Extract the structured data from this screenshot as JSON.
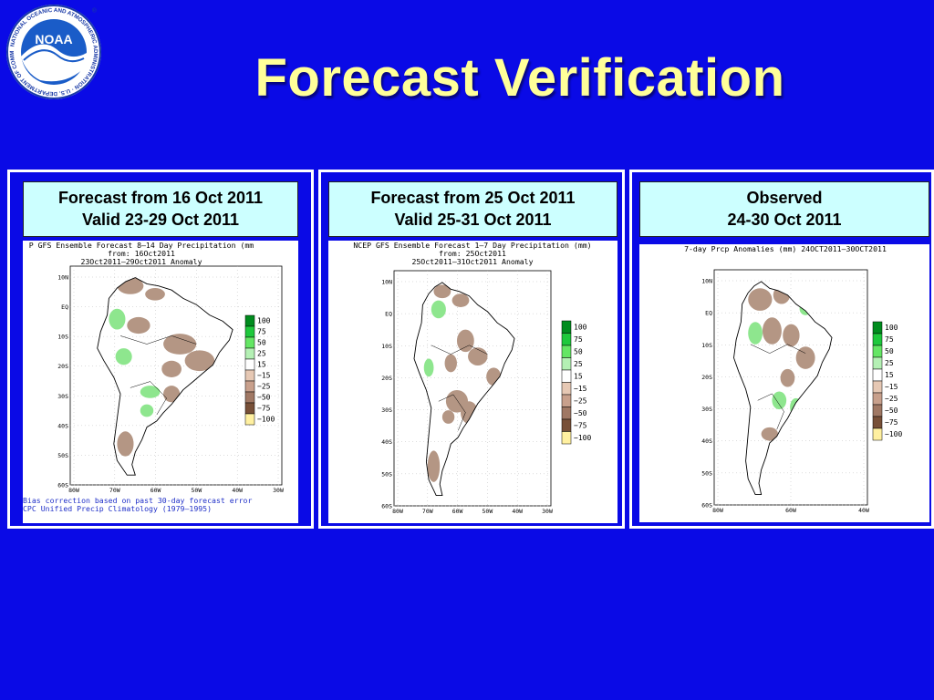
{
  "slide": {
    "title": "Forecast Verification",
    "background_color": "#0a0ae6",
    "title_color": "#ffff99",
    "logo_icon": "noaa-logo",
    "logo_text": "NOAA",
    "logo_ring_text": "NATIONAL OCEANIC AND ATMOSPHERIC ADMINISTRATION · U.S. DEPARTMENT OF COMMERCE"
  },
  "panels": [
    {
      "caption_line1": "Forecast from 16 Oct 2011",
      "caption_line2": "Valid 23-29 Oct 2011",
      "map_header1": "P GFS Ensemble Forecast 8—14 Day Precipitation (mm",
      "map_header2": "from: 16Oct2011",
      "map_header3": "23Oct2011—29Oct2011 Anomaly",
      "footer1": "Bias correction based on past 30-day forecast error",
      "footer2": "CPC Unified Precip Climatology (1979—1995)",
      "lat_labels": [
        "10N",
        "EQ",
        "10S",
        "20S",
        "30S",
        "40S",
        "50S",
        "60S"
      ],
      "lon_labels": [
        "80W",
        "70W",
        "60W",
        "50W",
        "40W",
        "30W"
      ],
      "legend": [
        "100",
        "75",
        "50",
        "25",
        "15",
        "−15",
        "−25",
        "−50",
        "−75",
        "−100"
      ]
    },
    {
      "caption_line1": "Forecast from 25 Oct 2011",
      "caption_line2": "Valid 25-31 Oct 2011",
      "map_header1": "NCEP GFS Ensemble Forecast 1—7 Day Precipitation (mm)",
      "map_header2": "from: 25Oct2011",
      "map_header3": "25Oct2011—31Oct2011 Anomaly",
      "lat_labels": [
        "10N",
        "EQ",
        "10S",
        "20S",
        "30S",
        "40S",
        "50S",
        "60S"
      ],
      "lon_labels": [
        "80W",
        "70W",
        "60W",
        "50W",
        "40W",
        "30W"
      ],
      "legend": [
        "100",
        "75",
        "50",
        "25",
        "15",
        "−15",
        "−25",
        "−50",
        "−75",
        "−100"
      ]
    },
    {
      "caption_line1": "Observed",
      "caption_line2": "24-30 Oct 2011",
      "map_header1": "7-day Prcp Anomalies (mm) 24OCT2011—30OCT2011",
      "lat_labels": [
        "10N",
        "EQ",
        "10S",
        "20S",
        "30S",
        "40S",
        "50S",
        "60S"
      ],
      "lon_labels": [
        "80W",
        "60W",
        "40W"
      ],
      "legend": [
        "100",
        "75",
        "50",
        "25",
        "15",
        "−15",
        "−25",
        "−50",
        "−75",
        "−100"
      ]
    }
  ],
  "legend_colors": [
    "#008c1e",
    "#1ec83c",
    "#64e664",
    "#b4f0b4",
    "#ffffff",
    "#e6c8b4",
    "#c8a08c",
    "#a07864",
    "#785038",
    "#fff0a0"
  ],
  "anomaly_colors": {
    "wet": "#8ee68e",
    "dry": "#b49684"
  }
}
